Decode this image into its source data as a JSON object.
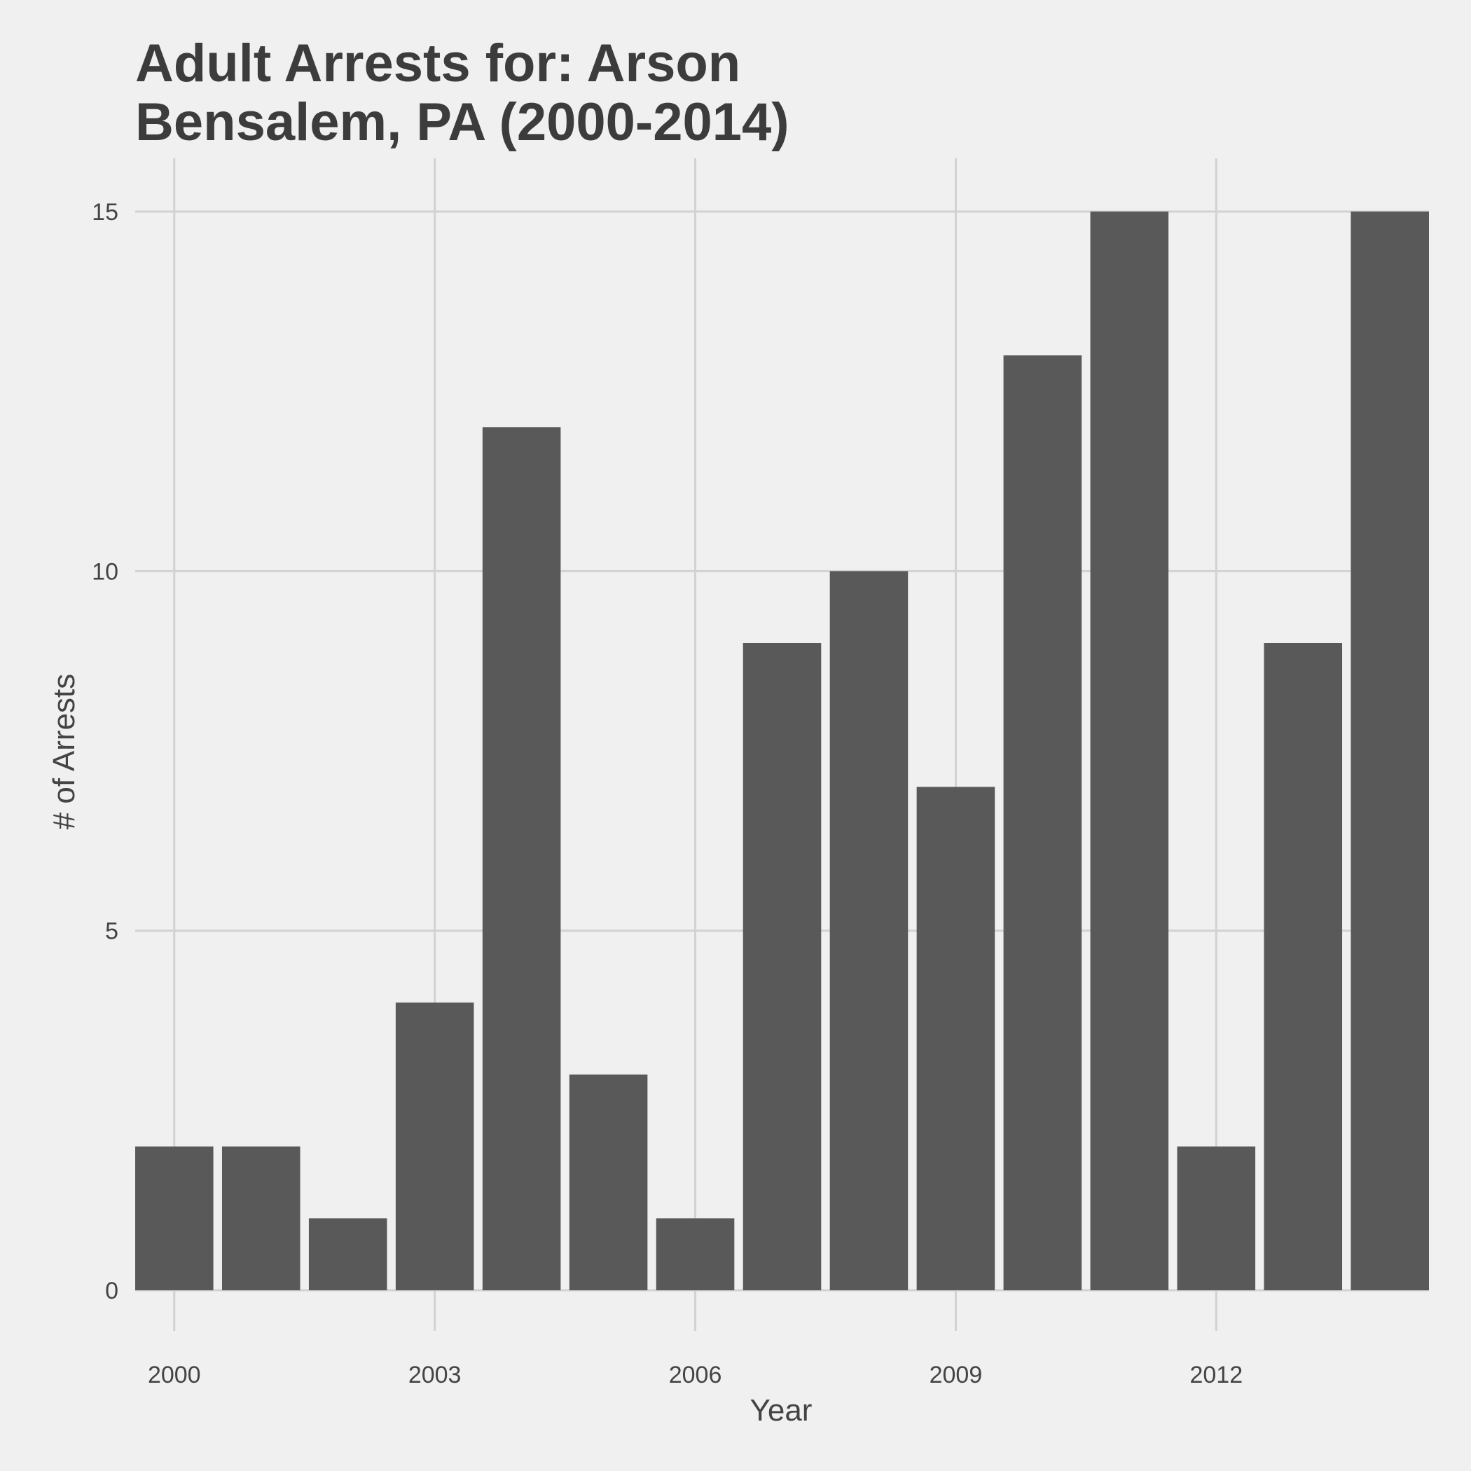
{
  "chart_data": {
    "type": "bar",
    "title": "Adult Arrests for: Arson",
    "subtitle": "Bensalem, PA (2000-2014)",
    "xlabel": "Year",
    "ylabel": "# of Arrests",
    "categories": [
      2000,
      2001,
      2002,
      2003,
      2004,
      2005,
      2006,
      2007,
      2008,
      2009,
      2010,
      2011,
      2012,
      2013,
      2014
    ],
    "values": [
      2,
      2,
      1,
      4,
      12,
      3,
      1,
      9,
      10,
      7,
      13,
      15,
      2,
      9,
      15
    ],
    "x_ticks": [
      "2000",
      "2003",
      "2006",
      "2009",
      "2012"
    ],
    "x_tick_values": [
      2000,
      2003,
      2006,
      2009,
      2012
    ],
    "y_ticks": [
      "0",
      "5",
      "10",
      "15"
    ],
    "y_tick_values": [
      0,
      5,
      10,
      15
    ],
    "xlim": [
      1999.55,
      2014.45
    ],
    "ylim": [
      0,
      15
    ],
    "grid": true,
    "legend": "none",
    "colors": {
      "bar": "#595959",
      "background": "#f0f0f0",
      "grid": "#d2d2d2",
      "title": "#3c3c3c",
      "text": "#444444"
    }
  }
}
